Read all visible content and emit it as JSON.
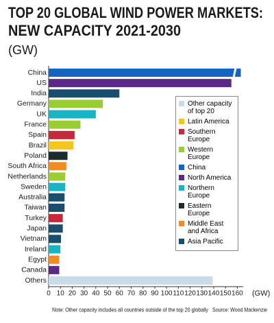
{
  "chart_data": {
    "type": "bar",
    "orientation": "horizontal",
    "title": [
      "TOP 20 GLOBAL WIND POWER MARKETS:",
      "NEW CAPACITY 2021-2030"
    ],
    "subtitle": "(GW)",
    "x_axis_label": "(GW)",
    "categories": [
      "China",
      "US",
      "India",
      "Germany",
      "UK",
      "France",
      "Spain",
      "Brazil",
      "Poland",
      "South Africa",
      "Netherlands",
      "Sweden",
      "Australia",
      "Taiwan",
      "Turkey",
      "Japan",
      "Vietnam",
      "Ireland",
      "Egypt",
      "Canada",
      "Others"
    ],
    "values": [
      163,
      155,
      60,
      46,
      40,
      27,
      22,
      21,
      16,
      15,
      14,
      14,
      13.5,
      13.5,
      12,
      12,
      10.5,
      10,
      9,
      9,
      139
    ],
    "colors": [
      "#1565c0",
      "#5b2a86",
      "#1a4e6e",
      "#9acd32",
      "#17b4c4",
      "#9acd32",
      "#c62a3a",
      "#f5c518",
      "#1c2b2b",
      "#f28c1e",
      "#9acd32",
      "#17b4c4",
      "#1a4e6e",
      "#1a4e6e",
      "#c62a3a",
      "#1a4e6e",
      "#1a4e6e",
      "#17b4c4",
      "#f28c1e",
      "#5b2a86",
      "#c9dbe6"
    ],
    "legend": [
      {
        "name": "Other capacity of top 20",
        "color": "#c9dbe6"
      },
      {
        "name": "Latin America",
        "color": "#f5c518"
      },
      {
        "name": "Southern Europe",
        "color": "#c62a3a"
      },
      {
        "name": "Western Europe",
        "color": "#9acd32"
      },
      {
        "name": "China",
        "color": "#1565c0"
      },
      {
        "name": "North America",
        "color": "#5b2a86"
      },
      {
        "name": "Northern Europe",
        "color": "#17b4c4"
      },
      {
        "name": "Eastern Europe",
        "color": "#1c2b2b"
      },
      {
        "name": "Middle East and Africa",
        "color": "#f28c1e"
      },
      {
        "name": "Asia Pacific",
        "color": "#1a4e6e"
      }
    ],
    "xlim": [
      0,
      165
    ],
    "xticks": [
      0,
      10,
      20,
      30,
      40,
      50,
      60,
      70,
      80,
      90,
      100,
      110,
      120,
      130,
      140,
      150,
      160
    ],
    "note": "Note: Other capacity includes all countries outside of the top 20 globally",
    "source": "Source: Wood Mackenzie"
  }
}
